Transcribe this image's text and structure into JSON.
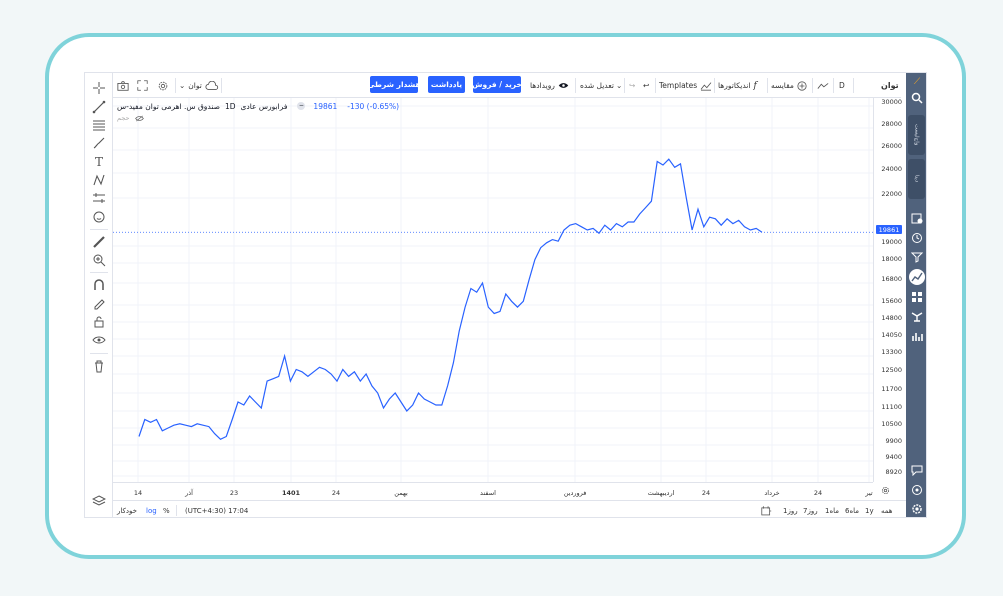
{
  "symbol_bar": {
    "symbol": "توان",
    "interval": "D",
    "compare_label": "مقایسه",
    "indicators_label": "اندیکاتورها",
    "templates_label": "Templates",
    "adjust_label": "تعدیل شده",
    "events_label": "رویدادها",
    "buy_sell_label": "خرید / فروش",
    "note_label": "یادداشت",
    "alert_label": "هشدار شرطی",
    "cloud_label": "توان"
  },
  "legend": {
    "title": "صندوق س. اهرمی توان مفید-س",
    "interval": "1D",
    "type": "فرابورس عادی",
    "price": "19861",
    "change": "-130 (-0.65%)",
    "volume_label": "حجم"
  },
  "colors": {
    "accent": "#2962ff",
    "line": "#2962ff",
    "sidebar": "#50627c",
    "frame": "#7fd3da"
  },
  "price_axis": {
    "current_price": "19861",
    "labels": [
      "30000",
      "28000",
      "26000",
      "24000",
      "22000",
      "19000",
      "18000",
      "16800",
      "15600",
      "14800",
      "14050",
      "13300",
      "12500",
      "11700",
      "11100",
      "10500",
      "9900",
      "9400",
      "8920"
    ]
  },
  "time_axis": {
    "labels": [
      "14",
      "آذر",
      "23",
      "1401",
      "24",
      "بهمن",
      "اسفند",
      "فروردین",
      "اردیبهشت",
      "24",
      "خرداد",
      "24",
      "تیر"
    ]
  },
  "bottom_bar": {
    "ranges": [
      "همه",
      "1y",
      "6ماه",
      "1ماه",
      "7روز",
      "1روز"
    ],
    "timezone": "(UTC+4:30) 17:04",
    "percent_label": "%",
    "log_label": "log",
    "auto_label": "خودکار"
  },
  "right_sidebar": {
    "tab1": "واچ‌لیست",
    "tab2": "دیتا"
  },
  "chart_data": {
    "type": "line",
    "title": "صندوق س. اهرمی توان مفید-س",
    "xlabel": "",
    "ylabel": "",
    "ylim": [
      8920,
      30000
    ],
    "grid": true,
    "series": [
      {
        "values": [
          10200,
          10800,
          10700,
          10800,
          10400,
          10500,
          10600,
          10650,
          10600,
          10550,
          10650,
          10600,
          10550,
          10300,
          10100,
          10200,
          10800,
          11400,
          11300,
          11600,
          11400,
          11200,
          12200,
          12300,
          12400,
          13300,
          12200,
          12700,
          12600,
          12400,
          12600,
          12800,
          12700,
          12500,
          12200,
          12700,
          12400,
          12600,
          12200,
          12500,
          12000,
          11700,
          11200,
          11500,
          11700,
          11400,
          11100,
          11300,
          11700,
          11500,
          11400,
          11300,
          11300,
          12000,
          13000,
          14400,
          15500,
          16500,
          16300,
          16800,
          15500,
          15200,
          15300,
          16200,
          15800,
          15500,
          15800,
          17000,
          18200,
          18900,
          19200,
          19400,
          19300,
          20000,
          20300,
          20400,
          20200,
          20000,
          20100,
          19800,
          20300,
          20000,
          20400,
          20200,
          20500,
          20500,
          21000,
          21400,
          21800,
          25000,
          24700,
          25200,
          24500,
          24800,
          22000,
          20000,
          21300,
          20200,
          20800,
          20700,
          20300,
          20700,
          20400,
          20600,
          20200,
          20000,
          20100,
          19861
        ]
      }
    ]
  }
}
